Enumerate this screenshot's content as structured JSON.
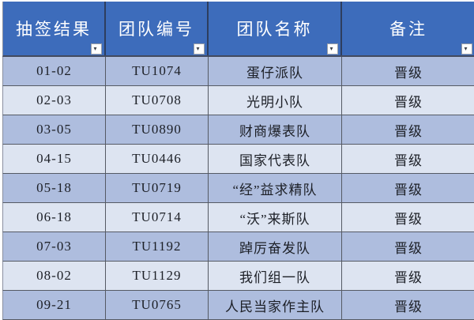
{
  "table": {
    "columns": [
      {
        "label": "抽签结果"
      },
      {
        "label": "团队编号"
      },
      {
        "label": "团队名称"
      },
      {
        "label": "备注"
      }
    ],
    "filter_icon_glyph": "▾",
    "rows": [
      {
        "draw": "01-02",
        "team_id": "TU1074",
        "team_name": "蛋仔派队",
        "remark": "晋级"
      },
      {
        "draw": "02-03",
        "team_id": "TU0708",
        "team_name": "光明小队",
        "remark": "晋级"
      },
      {
        "draw": "03-05",
        "team_id": "TU0890",
        "team_name": "财商爆表队",
        "remark": "晋级"
      },
      {
        "draw": "04-15",
        "team_id": "TU0446",
        "team_name": "国家代表队",
        "remark": "晋级"
      },
      {
        "draw": "05-18",
        "team_id": "TU0719",
        "team_name": "“经”益求精队",
        "remark": "晋级"
      },
      {
        "draw": "06-18",
        "team_id": "TU0714",
        "team_name": "“沃”来斯队",
        "remark": "晋级"
      },
      {
        "draw": "07-03",
        "team_id": "TU1192",
        "team_name": "踔厉奋发队",
        "remark": "晋级"
      },
      {
        "draw": "08-02",
        "team_id": "TU1129",
        "team_name": "我们组一队",
        "remark": "晋级"
      },
      {
        "draw": "09-21",
        "team_id": "TU0765",
        "team_name": "人民当家作主队",
        "remark": "晋级"
      }
    ],
    "colors": {
      "header_bg": "#3d6cbb",
      "header_text": "#ffffff",
      "row_odd_bg": "#aebdde",
      "row_even_bg": "#dde4f1",
      "cell_text": "#1c1f26",
      "grid_border": "#555a64"
    }
  }
}
